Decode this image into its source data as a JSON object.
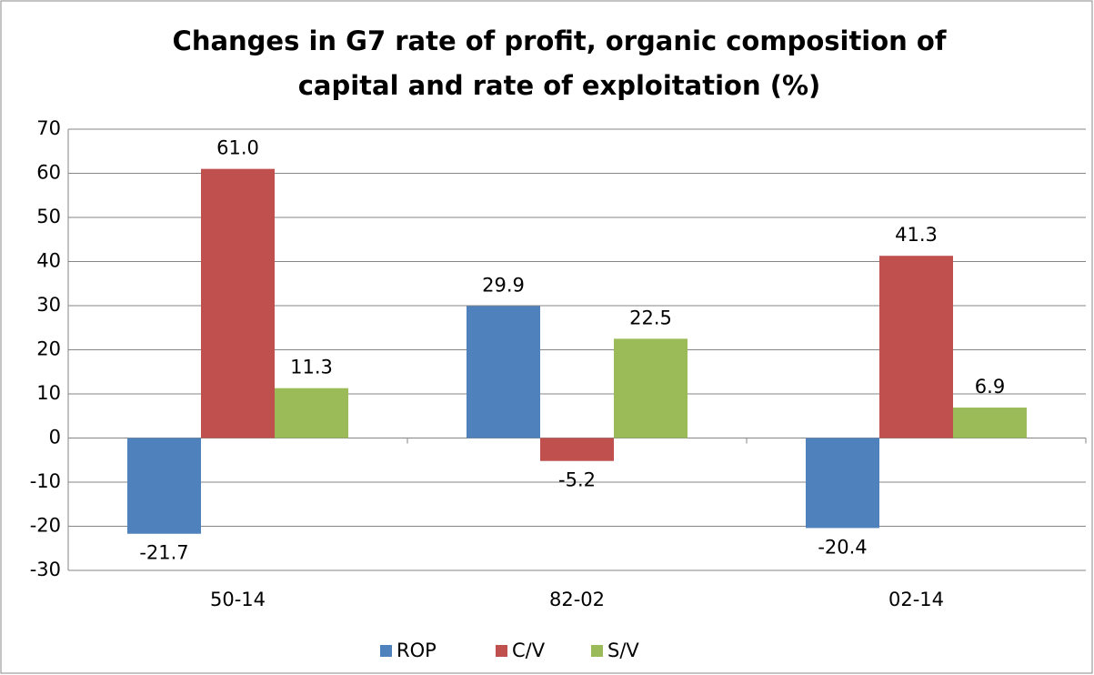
{
  "chart_data": {
    "type": "bar",
    "title": [
      "Changes in G7 rate of profit, organic composition of",
      "capital and rate of exploitation (%)"
    ],
    "categories": [
      "50-14",
      "82-02",
      "02-14"
    ],
    "series": [
      {
        "name": "ROP",
        "color": "#4f81bd",
        "values": [
          -21.7,
          29.9,
          -20.4
        ],
        "value_labels": [
          "-21.7",
          "29.9",
          "-20.4"
        ]
      },
      {
        "name": "C/V",
        "color": "#c0504d",
        "values": [
          61.0,
          -5.2,
          41.3
        ],
        "value_labels": [
          "61.0",
          "-5.2",
          "41.3"
        ]
      },
      {
        "name": "S/V",
        "color": "#9bbb59",
        "values": [
          11.3,
          22.5,
          6.9
        ],
        "value_labels": [
          "11.3",
          "22.5",
          "6.9"
        ]
      }
    ],
    "ylim": [
      -30,
      70
    ],
    "yticks": [
      -30,
      -20,
      -10,
      0,
      10,
      20,
      30,
      40,
      50,
      60,
      70
    ],
    "grid": true,
    "legend": "bottom"
  }
}
